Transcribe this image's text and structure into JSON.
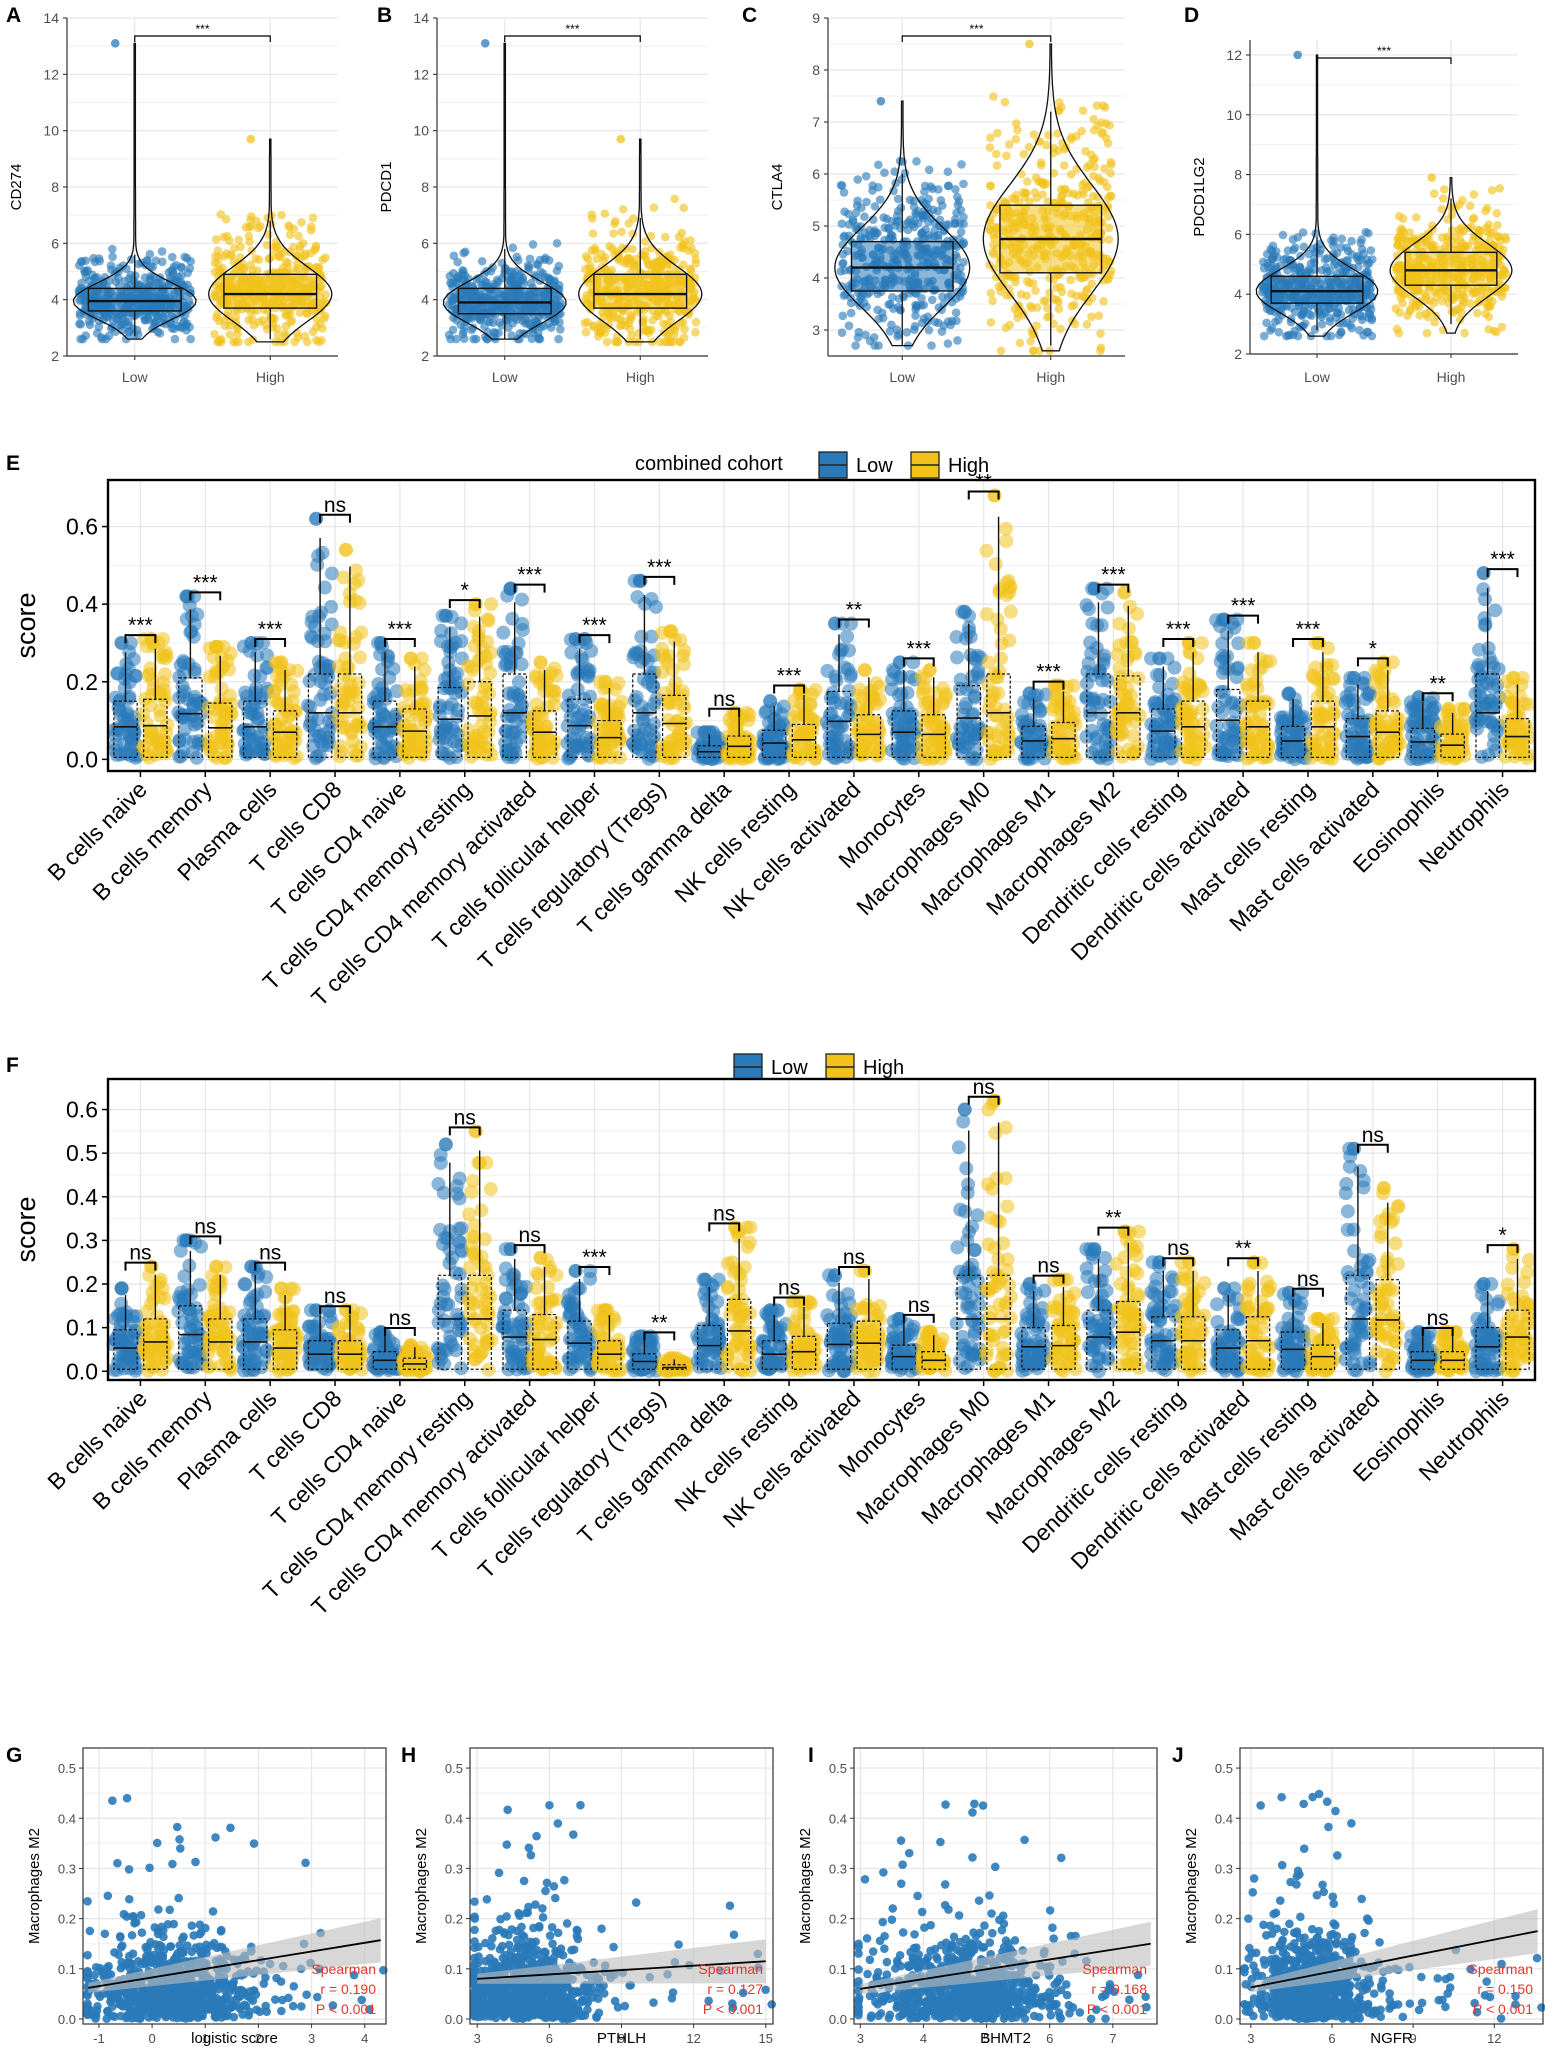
{
  "figure": {
    "colors": {
      "low": "#2a7ab9",
      "high": "#f1c21b",
      "grid": "#e6e6e6",
      "frame": "#000000",
      "panel_bg": "#ffffff",
      "stat_text": "#e8342a",
      "ci": "#bdbdbd"
    },
    "groups": [
      "Low",
      "High"
    ]
  },
  "chart_data": [
    {
      "id": "A",
      "type": "violin-box-jitter",
      "ylabel": "CD274",
      "ylim": [
        2,
        14
      ],
      "yticks": [
        2,
        4,
        6,
        8,
        10,
        12,
        14
      ],
      "categories": [
        "Low",
        "High"
      ],
      "series": [
        {
          "name": "Low",
          "q1": 3.6,
          "median": 3.95,
          "q3": 4.4,
          "whisk_lo": 2.7,
          "whisk_hi": 5.6,
          "min": 2.6,
          "max": 13.1,
          "spread": 1.6
        },
        {
          "name": "High",
          "q1": 3.7,
          "median": 4.2,
          "q3": 4.9,
          "whisk_lo": 2.6,
          "whisk_hi": 6.8,
          "min": 2.5,
          "max": 9.7,
          "spread": 2.0
        }
      ],
      "significance": "***"
    },
    {
      "id": "B",
      "type": "violin-box-jitter",
      "ylabel": "PDCD1",
      "ylim": [
        2,
        14
      ],
      "yticks": [
        2,
        4,
        6,
        8,
        10,
        12,
        14
      ],
      "categories": [
        "Low",
        "High"
      ],
      "series": [
        {
          "name": "Low",
          "q1": 3.5,
          "median": 3.9,
          "q3": 4.4,
          "whisk_lo": 2.6,
          "whisk_hi": 5.8,
          "min": 2.6,
          "max": 13.1,
          "spread": 1.6
        },
        {
          "name": "High",
          "q1": 3.7,
          "median": 4.2,
          "q3": 4.9,
          "whisk_lo": 2.6,
          "whisk_hi": 6.9,
          "min": 2.5,
          "max": 9.7,
          "spread": 2.0
        }
      ],
      "significance": "***"
    },
    {
      "id": "C",
      "type": "violin-box-jitter",
      "ylabel": "CTLA4",
      "ylim": [
        2.5,
        9
      ],
      "yticks": [
        3,
        4,
        5,
        6,
        7,
        8,
        9
      ],
      "categories": [
        "Low",
        "High"
      ],
      "series": [
        {
          "name": "Low",
          "q1": 3.75,
          "median": 4.2,
          "q3": 4.7,
          "whisk_lo": 2.7,
          "whisk_hi": 6.0,
          "min": 2.7,
          "max": 7.4,
          "spread": 1.4
        },
        {
          "name": "High",
          "q1": 4.1,
          "median": 4.75,
          "q3": 5.4,
          "whisk_lo": 2.7,
          "whisk_hi": 7.2,
          "min": 2.6,
          "max": 8.5,
          "spread": 1.8
        }
      ],
      "significance": "***"
    },
    {
      "id": "D",
      "type": "violin-box-jitter",
      "ylabel": "PDCD1LG2",
      "ylim": [
        2,
        12.5
      ],
      "yticks": [
        2,
        4,
        6,
        8,
        10,
        12
      ],
      "categories": [
        "Low",
        "High"
      ],
      "series": [
        {
          "name": "Low",
          "q1": 3.7,
          "median": 4.1,
          "q3": 4.6,
          "whisk_lo": 2.8,
          "whisk_hi": 5.9,
          "min": 2.6,
          "max": 12.0,
          "spread": 1.4
        },
        {
          "name": "High",
          "q1": 4.3,
          "median": 4.8,
          "q3": 5.4,
          "whisk_lo": 3.0,
          "whisk_hi": 7.2,
          "min": 2.7,
          "max": 7.9,
          "spread": 1.8
        }
      ],
      "significance": "***"
    },
    {
      "id": "E",
      "type": "box-jitter",
      "ylabel": "score",
      "ylim": [
        -0.03,
        0.72
      ],
      "yticks": [
        0.0,
        0.2,
        0.4,
        0.6
      ],
      "yticklabels": [
        "0.0",
        "0.2",
        "0.4",
        "0.6"
      ],
      "legend": {
        "title": "combined cohort",
        "entries": [
          "Low",
          "High"
        ],
        "position": "top"
      },
      "categories": [
        "B cells naive",
        "B cells memory",
        "Plasma cells",
        "T cells CD8",
        "T cells CD4 naive",
        "T cells CD4 memory resting",
        "T cells CD4 memory activated",
        "T cells follicular helper",
        "T cells regulatory (Tregs)",
        "T cells gamma delta",
        "NK cells resting",
        "NK cells activated",
        "Monocytes",
        "Macrophages M0",
        "Macrophages M1",
        "Macrophages M2",
        "Dendritic cells resting",
        "Dendritic cells activated",
        "Mast cells resting",
        "Mast cells activated",
        "Eosinophils",
        "Neutrophils"
      ],
      "max_low": [
        0.3,
        0.42,
        0.3,
        0.62,
        0.3,
        0.37,
        0.44,
        0.31,
        0.46,
        0.07,
        0.15,
        0.35,
        0.25,
        0.38,
        0.17,
        0.44,
        0.26,
        0.36,
        0.17,
        0.21,
        0.16,
        0.48
      ],
      "max_high": [
        0.31,
        0.29,
        0.25,
        0.54,
        0.26,
        0.4,
        0.25,
        0.2,
        0.33,
        0.12,
        0.18,
        0.23,
        0.23,
        0.68,
        0.19,
        0.43,
        0.3,
        0.3,
        0.3,
        0.25,
        0.13,
        0.21
      ],
      "significance": [
        "***",
        "***",
        "***",
        "ns",
        "***",
        "*",
        "***",
        "***",
        "***",
        "ns",
        "***",
        "**",
        "***",
        "**",
        "***",
        "***",
        "***",
        "***",
        "***",
        "*",
        "**",
        "***"
      ]
    },
    {
      "id": "F",
      "type": "box-jitter",
      "ylabel": "score",
      "ylim": [
        -0.02,
        0.67
      ],
      "yticks": [
        0.0,
        0.1,
        0.2,
        0.3,
        0.4,
        0.5,
        0.6
      ],
      "yticklabels": [
        "0.0",
        "0.1",
        "0.2",
        "0.3",
        "0.4",
        "0.5",
        "0.6"
      ],
      "legend": {
        "title": "",
        "entries": [
          "Low",
          "High"
        ],
        "position": "top"
      },
      "categories": [
        "B cells naive",
        "B cells memory",
        "Plasma cells",
        "T cells CD8",
        "T cells CD4 naive",
        "T cells CD4 memory resting",
        "T cells CD4 memory activated",
        "T cells follicular helper",
        "T cells regulatory (Tregs)",
        "T cells gamma delta",
        "NK cells resting",
        "NK cells activated",
        "Monocytes",
        "Macrophages M0",
        "Macrophages M1",
        "Macrophages M2",
        "Dendritic cells resting",
        "Dendritic cells activated",
        "Mast cells resting",
        "Mast cells activated",
        "Eosinophils",
        "Neutrophils"
      ],
      "max_low": [
        0.19,
        0.3,
        0.24,
        0.14,
        0.09,
        0.52,
        0.28,
        0.23,
        0.08,
        0.21,
        0.14,
        0.22,
        0.12,
        0.6,
        0.2,
        0.28,
        0.25,
        0.19,
        0.18,
        0.51,
        0.09,
        0.2
      ],
      "max_high": [
        0.24,
        0.24,
        0.19,
        0.14,
        0.06,
        0.55,
        0.26,
        0.14,
        0.03,
        0.33,
        0.16,
        0.23,
        0.09,
        0.62,
        0.21,
        0.32,
        0.25,
        0.25,
        0.12,
        0.42,
        0.09,
        0.28
      ],
      "significance": [
        "ns",
        "ns",
        "ns",
        "ns",
        "ns",
        "ns",
        "ns",
        "***",
        "**",
        "ns",
        "ns",
        "ns",
        "ns",
        "ns",
        "ns",
        "**",
        "ns",
        "**",
        "ns",
        "ns",
        "ns",
        "*"
      ]
    },
    {
      "id": "G",
      "type": "scatter",
      "xlabel": "logistic score",
      "ylabel": "Macrophages M2",
      "xlim": [
        -1.3,
        4.4
      ],
      "ylim": [
        -0.01,
        0.54
      ],
      "xticks": [
        -1,
        0,
        1,
        2,
        3,
        4
      ],
      "yticks": [
        0.0,
        0.1,
        0.2,
        0.3,
        0.4,
        0.5
      ],
      "xcenter": 0.4,
      "xspread": 0.8,
      "fit": {
        "x": [
          -1.2,
          4.3
        ],
        "y": [
          0.062,
          0.157
        ]
      },
      "stats": {
        "method": "Spearman",
        "r": "r = 0.190",
        "p": "P < 0.001"
      }
    },
    {
      "id": "H",
      "type": "scatter",
      "xlabel": "PTHLH",
      "ylabel": "Macrophages M2",
      "xlim": [
        2.7,
        15.3
      ],
      "ylim": [
        -0.01,
        0.54
      ],
      "xticks": [
        3,
        6,
        9,
        12,
        15
      ],
      "yticks": [
        0.0,
        0.1,
        0.2,
        0.3,
        0.4,
        0.5
      ],
      "xcenter": 5.0,
      "xspread": 1.4,
      "fit": {
        "x": [
          3.0,
          15.0
        ],
        "y": [
          0.08,
          0.115
        ]
      },
      "stats": {
        "method": "Spearman",
        "r": "r = 0.127",
        "p": "P < 0.001"
      }
    },
    {
      "id": "I",
      "type": "scatter",
      "xlabel": "BHMT2",
      "ylabel": "Macrophages M2",
      "xlim": [
        2.9,
        7.7
      ],
      "ylim": [
        -0.01,
        0.54
      ],
      "xticks": [
        3,
        4,
        5,
        6,
        7
      ],
      "yticks": [
        0.0,
        0.1,
        0.2,
        0.3,
        0.4,
        0.5
      ],
      "xcenter": 4.6,
      "xspread": 0.7,
      "fit": {
        "x": [
          3.0,
          7.6
        ],
        "y": [
          0.06,
          0.15
        ]
      },
      "stats": {
        "method": "Spearman",
        "r": "r = 0.168",
        "p": "P < 0.001"
      }
    },
    {
      "id": "J",
      "type": "scatter",
      "xlabel": "NGFR",
      "ylabel": "Macrophages M2",
      "xlim": [
        2.6,
        13.8
      ],
      "ylim": [
        -0.01,
        0.54
      ],
      "xticks": [
        3,
        6,
        9,
        12
      ],
      "yticks": [
        0.0,
        0.1,
        0.2,
        0.3,
        0.4,
        0.5
      ],
      "xcenter": 5.3,
      "xspread": 1.1,
      "fit": {
        "x": [
          3.0,
          13.6
        ],
        "y": [
          0.063,
          0.175
        ]
      },
      "stats": {
        "method": "Spearman",
        "r": "r = 0.150",
        "p": "P < 0.001"
      }
    }
  ]
}
